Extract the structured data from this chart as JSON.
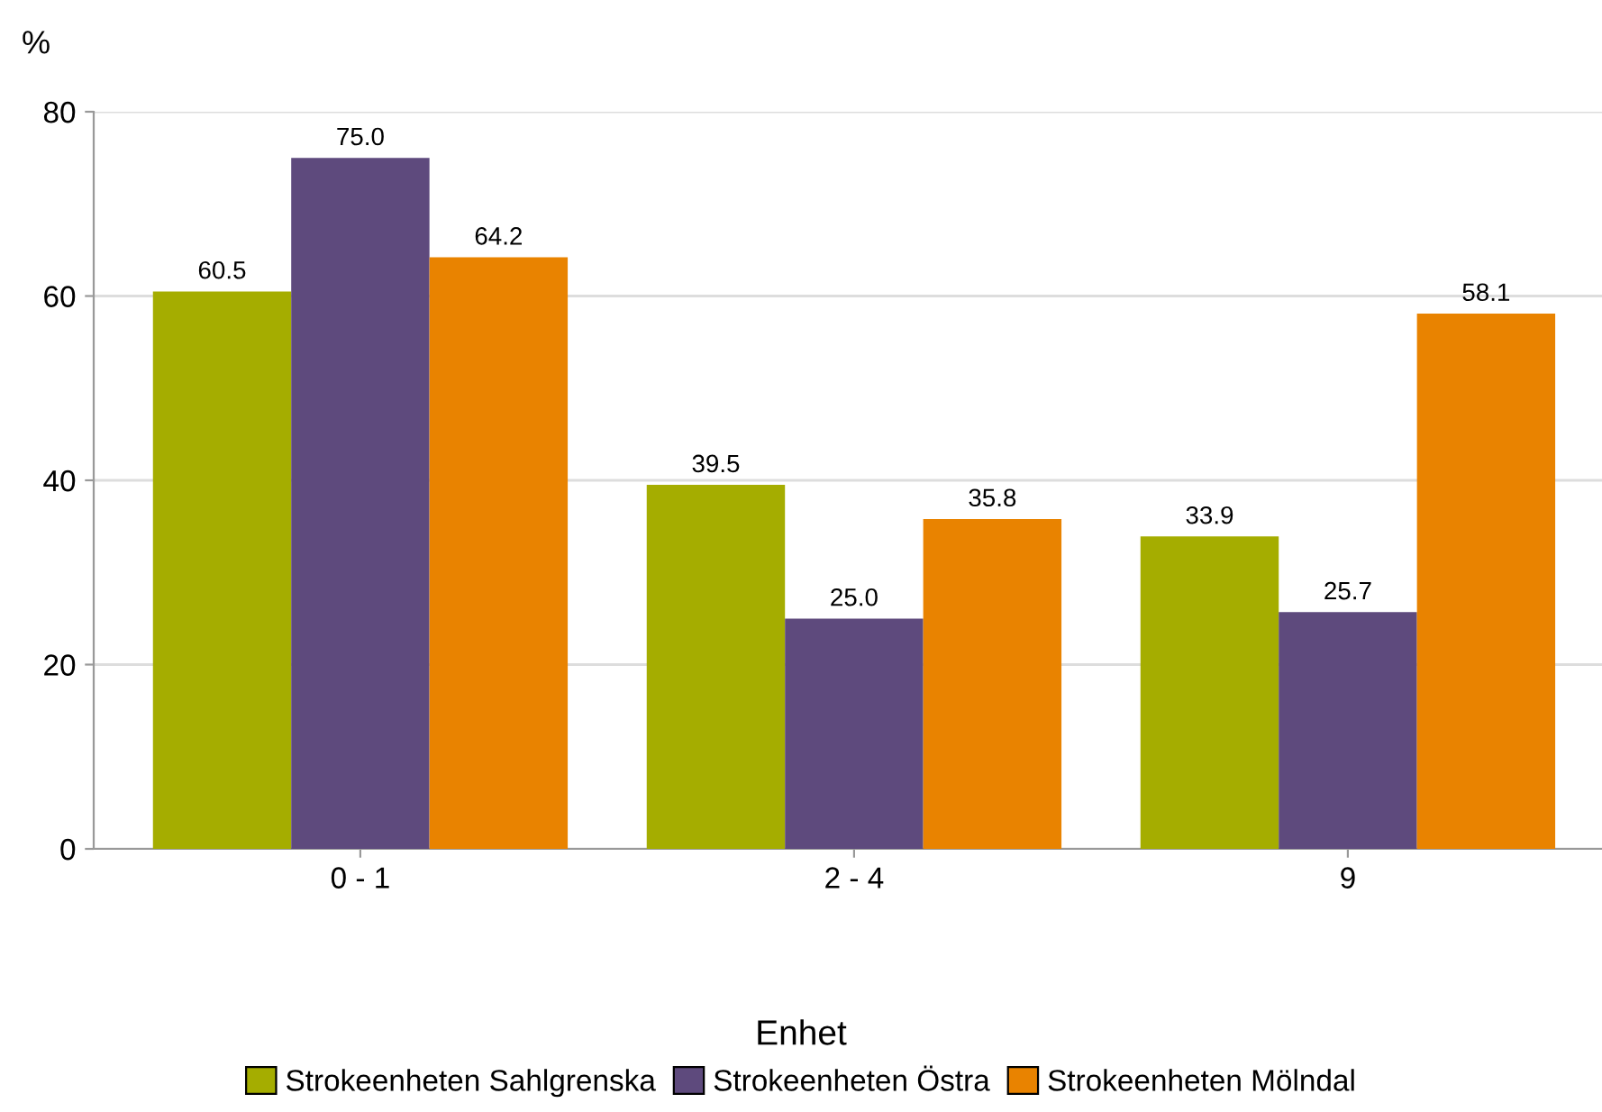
{
  "chart_data": {
    "type": "bar",
    "ylabel": "%",
    "legend_title": "Enhet",
    "categories": [
      "0 - 1",
      "2 - 4",
      "9"
    ],
    "series": [
      {
        "name": "Strokeenheten Sahlgrenska",
        "color": "#a5ad00",
        "values": [
          60.5,
          39.5,
          33.9
        ],
        "value_labels": [
          "60.5",
          "39.5",
          "33.9"
        ]
      },
      {
        "name": "Strokeenheten Östra",
        "color": "#5e4a7d",
        "values": [
          75.0,
          25.0,
          25.7
        ],
        "value_labels": [
          "75.0",
          "25.0",
          "25.7"
        ]
      },
      {
        "name": "Strokeenheten Mölndal",
        "color": "#e98300",
        "values": [
          64.2,
          35.8,
          58.1
        ],
        "value_labels": [
          "64.2",
          "35.8",
          "58.1"
        ]
      }
    ],
    "ylim": [
      0,
      80
    ],
    "yticks": [
      0,
      20,
      40,
      60,
      80
    ],
    "grid": "y",
    "legend": "bottom"
  }
}
